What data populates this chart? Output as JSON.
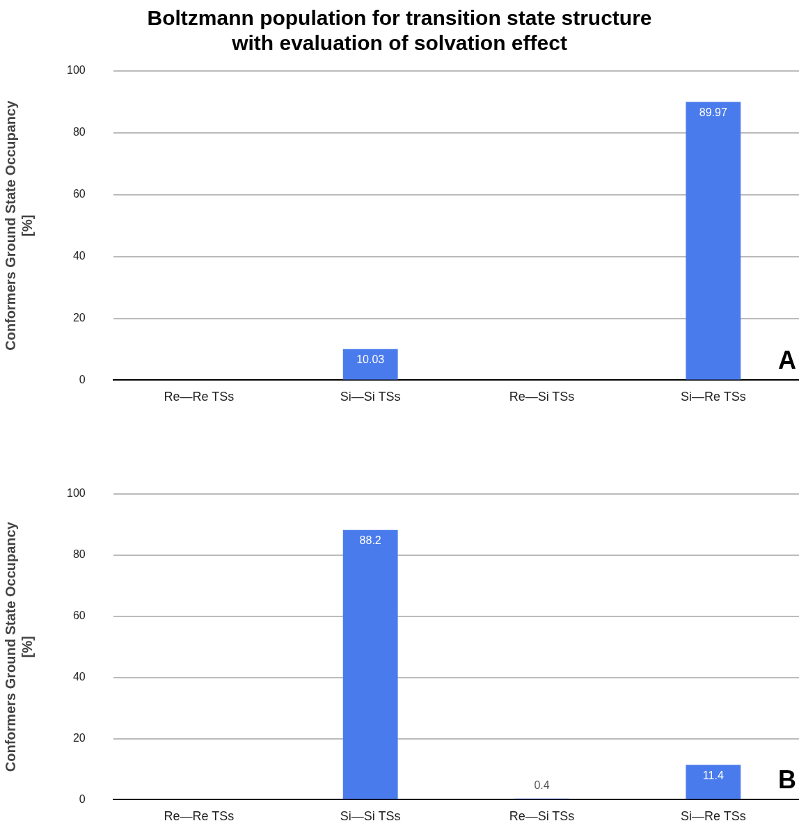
{
  "chart_data": [
    {
      "type": "bar",
      "title": "Boltzmann population for transition state structure\nwith evaluation of solvation effect",
      "ylabel": "Conformers Ground State Occupancy\n[%]",
      "categories": [
        "Re—Re TSs",
        "Si—Si TSs",
        "Re—Si TSs",
        "Si—Re TSs"
      ],
      "values": [
        0,
        10.03,
        0,
        89.97
      ],
      "value_labels": [
        null,
        "10.03",
        null,
        "89.97"
      ],
      "color": "#4a7bec",
      "ylim": [
        0,
        100
      ],
      "yticks": [
        0,
        20,
        40,
        60,
        80,
        100
      ],
      "grid": "y",
      "legend": false,
      "annotations": [
        "A"
      ]
    },
    {
      "type": "bar",
      "ylabel": "Conformers Ground State Occupancy\n[%]",
      "categories": [
        "Re—Re TSs",
        "Si—Si TSs",
        "Re—Si TSs",
        "Si—Re TSs"
      ],
      "values": [
        0,
        88.2,
        0.4,
        11.4
      ],
      "value_labels": [
        null,
        "88.2",
        "0.4",
        "11.4"
      ],
      "color": "#4a7bec",
      "ylim": [
        0,
        100
      ],
      "yticks": [
        0,
        20,
        40,
        60,
        80,
        100
      ],
      "grid": "y",
      "legend": false,
      "annotations": [
        "B"
      ]
    }
  ]
}
